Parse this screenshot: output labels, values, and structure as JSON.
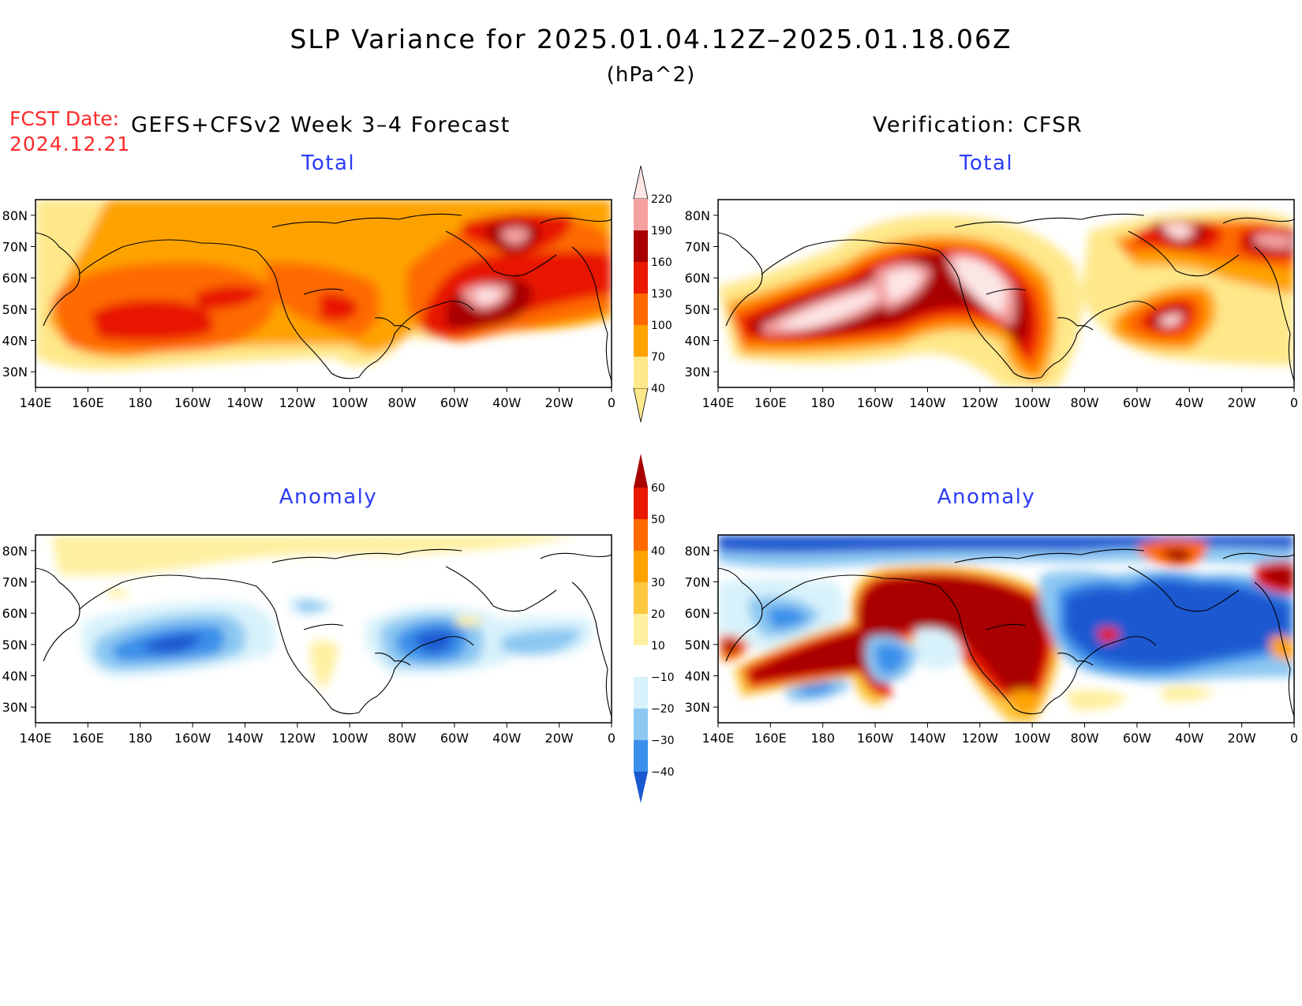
{
  "header": {
    "title": "SLP Variance for 2025.01.04.12Z–2025.01.18.06Z",
    "units": "(hPa^2)",
    "fcst_date_label": "FCST Date:",
    "fcst_date_value": "2024.12.21",
    "model_label": "GEFS+CFSv2 Week 3–4 Forecast",
    "verification_label": "Verification: CFSR"
  },
  "panels": [
    {
      "id": "fcst-total",
      "title": "Total",
      "scale": "total"
    },
    {
      "id": "verif-total",
      "title": "Total",
      "scale": "total"
    },
    {
      "id": "fcst-anomaly",
      "title": "Anomaly",
      "scale": "anomaly"
    },
    {
      "id": "verif-anomaly",
      "title": "Anomaly",
      "scale": "anomaly"
    }
  ],
  "axes": {
    "lon_labels": [
      "140E",
      "160E",
      "180",
      "160W",
      "140W",
      "120W",
      "100W",
      "80W",
      "60W",
      "40W",
      "20W",
      "0"
    ],
    "lat_labels": [
      "80N",
      "70N",
      "60N",
      "50N",
      "40N",
      "30N"
    ]
  },
  "colorbars": {
    "total": {
      "levels": [
        "40",
        "70",
        "100",
        "130",
        "160",
        "190",
        "220"
      ],
      "colors": [
        "#fee88a",
        "#fea200",
        "#fe6a00",
        "#e81900",
        "#a80000",
        "#f4a0a0",
        "#fde6e6"
      ]
    },
    "anomaly": {
      "levels": [
        "60",
        "50",
        "40",
        "30",
        "20",
        "10",
        "−10",
        "−20",
        "−30",
        "−40"
      ],
      "colors": [
        "#a80000",
        "#e81900",
        "#fe6a00",
        "#fea200",
        "#fdc740",
        "#fef0a0",
        "#ffffff",
        "#d8f2fb",
        "#8cc8f2",
        "#3a90ea",
        "#1a58d0"
      ]
    }
  }
}
